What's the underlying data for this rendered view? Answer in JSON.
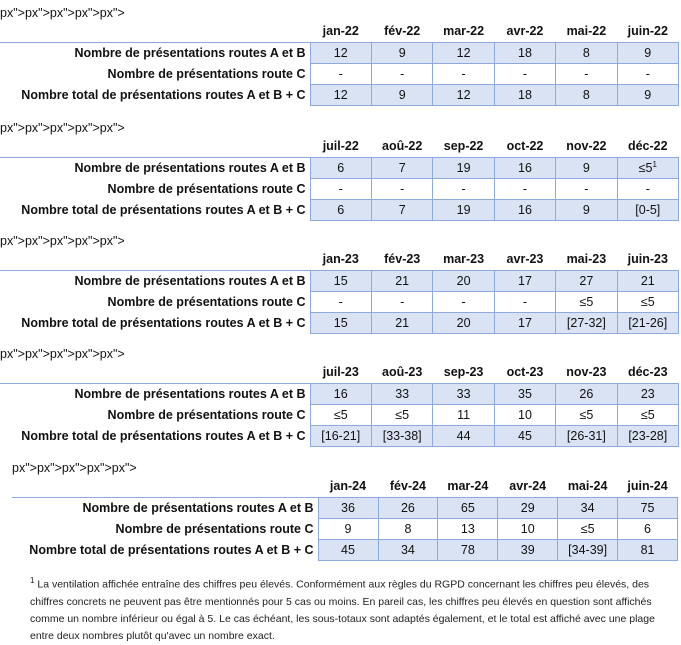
{
  "row_labels": [
    "Nombre de présentations routes A et B",
    "Nombre de présentations route C",
    "Nombre total de présentations routes A et B + C"
  ],
  "tables": [
    {
      "months": [
        "jan-22",
        "fév-22",
        "mar-22",
        "avr-22",
        "mai-22",
        "juin-22"
      ],
      "rows": [
        [
          "12",
          "9",
          "12",
          "18",
          "8",
          "9"
        ],
        [
          "-",
          "-",
          "-",
          "-",
          "-",
          "-"
        ],
        [
          "12",
          "9",
          "12",
          "18",
          "8",
          "9"
        ]
      ]
    },
    {
      "months": [
        "juil-22",
        "aoû-22",
        "sep-22",
        "oct-22",
        "nov-22",
        "déc-22"
      ],
      "rows": [
        [
          "6",
          "7",
          "19",
          "16",
          "9",
          "≤5"
        ],
        [
          "-",
          "-",
          "-",
          "-",
          "-",
          "-"
        ],
        [
          "6",
          "7",
          "19",
          "16",
          "9",
          "[0-5]"
        ]
      ],
      "sup_cell": {
        "row": 0,
        "col": 5,
        "text": "1"
      }
    },
    {
      "months": [
        "jan-23",
        "fév-23",
        "mar-23",
        "avr-23",
        "mai-23",
        "juin-23"
      ],
      "rows": [
        [
          "15",
          "21",
          "20",
          "17",
          "27",
          "21"
        ],
        [
          "-",
          "-",
          "-",
          "-",
          "≤5",
          "≤5"
        ],
        [
          "15",
          "21",
          "20",
          "17",
          "[27-32]",
          "[21-26]"
        ]
      ]
    },
    {
      "months": [
        "juil-23",
        "aoû-23",
        "sep-23",
        "oct-23",
        "nov-23",
        "déc-23"
      ],
      "rows": [
        [
          "16",
          "33",
          "33",
          "35",
          "26",
          "23"
        ],
        [
          "≤5",
          "≤5",
          "11",
          "10",
          "≤5",
          "≤5"
        ],
        [
          "[16-21]",
          "[33-38]",
          "44",
          "45",
          "[26-31]",
          "[23-28]"
        ]
      ]
    },
    {
      "months": [
        "jan-24",
        "fév-24",
        "mar-24",
        "avr-24",
        "mai-24",
        "juin-24"
      ],
      "rows": [
        [
          "36",
          "26",
          "65",
          "29",
          "34",
          "75"
        ],
        [
          "9",
          "8",
          "13",
          "10",
          "≤5",
          "6"
        ],
        [
          "45",
          "34",
          "78",
          "39",
          "[34-39]",
          "81"
        ]
      ]
    }
  ],
  "footnote": {
    "marker": "1",
    "text": " La ventilation affichée entraîne des chiffres peu élevés. Conformément aux règles du RGPD concernant les chiffres peu élevés, des chiffres concrets ne peuvent pas être mentionnés pour 5 cas ou moins. En pareil cas, les chiffres peu élevés en question sont affichés comme un nombre inférieur ou égal à 5. Le cas échéant, les sous-totaux sont adaptés également, et le total est affiché avec une plage entre deux nombres plutôt qu'avec un nombre exact."
  }
}
